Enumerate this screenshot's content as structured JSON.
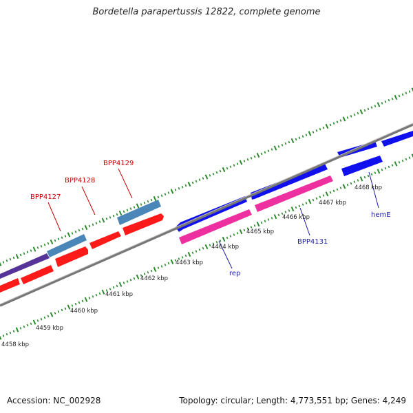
{
  "title": "Bordetella parapertussis 12822, complete genome",
  "accession": "Accession: NC_002928",
  "summary": "Topology: circular; Length: 4,773,551 bp; Genes: 4,249",
  "colors": {
    "forward_red": "#ff1a1a",
    "reverse_blue": "#1010ee",
    "steelblue": "#4a86b8",
    "magenta": "#ee2fa0",
    "purple": "#553399",
    "tick_green": "#2a8a2a",
    "backbone": "#888888",
    "label_red": "#cc0000",
    "label_blue": "#1a1aa0"
  },
  "kbp_labels": [
    {
      "kb": 4458,
      "text": "4458 kbp"
    },
    {
      "kb": 4459,
      "text": "4459 kbp"
    },
    {
      "kb": 4460,
      "text": "4460 kbp"
    },
    {
      "kb": 4461,
      "text": "4461 kbp"
    },
    {
      "kb": 4462,
      "text": "4462 kbp"
    },
    {
      "kb": 4463,
      "text": "4463 kbp"
    },
    {
      "kb": 4464,
      "text": "4464 kbp"
    },
    {
      "kb": 4465,
      "text": "4465 kbp"
    },
    {
      "kb": 4466,
      "text": "4466 kbp"
    },
    {
      "kb": 4467,
      "text": "4467 kbp"
    },
    {
      "kb": 4468,
      "text": "4468 kbp"
    }
  ],
  "gene_labels": [
    {
      "text": "BPP4127",
      "color": "red"
    },
    {
      "text": "BPP4128",
      "color": "red"
    },
    {
      "text": "BPP4129",
      "color": "red"
    },
    {
      "text": "rep",
      "color": "blue"
    },
    {
      "text": "BPP4131",
      "color": "blue"
    },
    {
      "text": "hemE",
      "color": "blue"
    }
  ]
}
